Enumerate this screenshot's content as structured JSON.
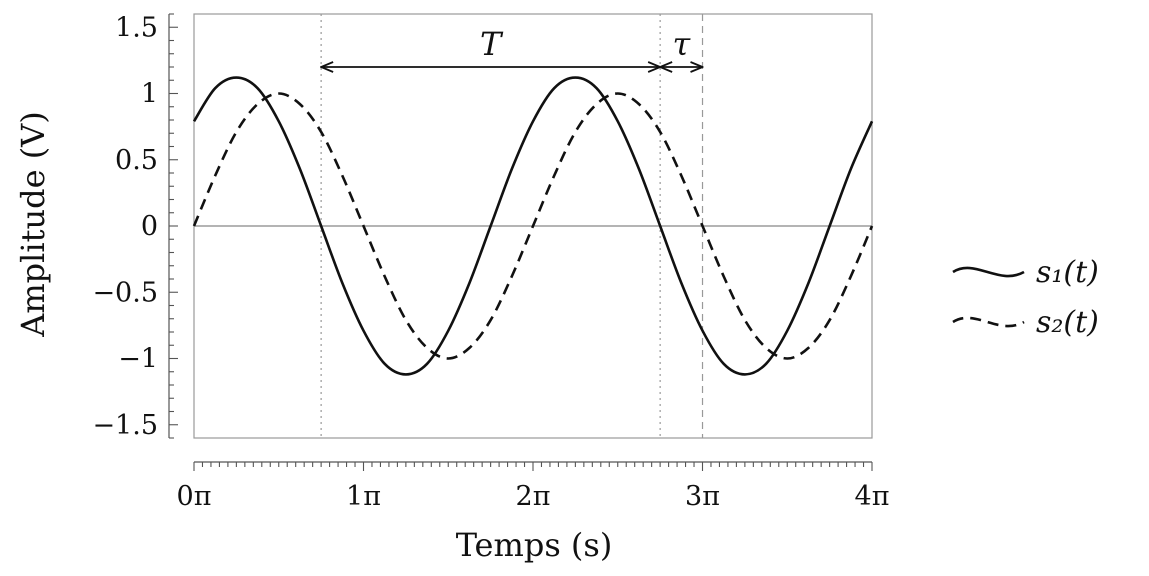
{
  "chart_data": {
    "type": "line",
    "xlabel": "Temps (s)",
    "ylabel": "Amplitude (V)",
    "xlim": [
      0,
      12.566
    ],
    "ylim": [
      -1.6,
      1.6
    ],
    "x_ticks": [
      {
        "value": 0,
        "label": "0π"
      },
      {
        "value": 3.1416,
        "label": "1π"
      },
      {
        "value": 6.2832,
        "label": "2π"
      },
      {
        "value": 9.4248,
        "label": "3π"
      },
      {
        "value": 12.566,
        "label": "4π"
      }
    ],
    "y_ticks": [
      {
        "value": 1.5,
        "label": "1.5"
      },
      {
        "value": 1,
        "label": "1"
      },
      {
        "value": 0.5,
        "label": "0.5"
      },
      {
        "value": 0,
        "label": "0"
      },
      {
        "value": -0.5,
        "label": "−0.5"
      },
      {
        "value": -1,
        "label": "−1"
      },
      {
        "value": -1.5,
        "label": "−1.5"
      }
    ],
    "series": [
      {
        "name": "s₁(t)",
        "style": "solid",
        "color": "#111111",
        "x": [
          0,
          0.3927,
          0.7854,
          1.1781,
          1.5708,
          1.9635,
          2.3562,
          2.7489,
          3.1416,
          3.5343,
          3.927,
          4.3197,
          4.7124,
          5.1051,
          5.4978,
          5.8905,
          6.2832,
          6.6759,
          7.0686,
          7.4613,
          7.854,
          8.2467,
          8.6394,
          9.0321,
          9.4248,
          9.8175,
          10.2102,
          10.6029,
          10.9956,
          11.3883,
          11.781,
          12.1737,
          12.5664
        ],
        "y": [
          0.79,
          1.04,
          1.12,
          1.04,
          0.79,
          0.43,
          0,
          -0.43,
          -0.79,
          -1.04,
          -1.12,
          -1.04,
          -0.79,
          -0.43,
          0,
          0.43,
          0.79,
          1.04,
          1.12,
          1.04,
          0.79,
          0.43,
          0,
          -0.43,
          -0.79,
          -1.04,
          -1.12,
          -1.04,
          -0.79,
          -0.43,
          0,
          0.43,
          0.79
        ]
      },
      {
        "name": "s₂(t)",
        "style": "dashed",
        "color": "#111111",
        "x": [
          0,
          0.3927,
          0.7854,
          1.1781,
          1.5708,
          1.9635,
          2.3562,
          2.7489,
          3.1416,
          3.5343,
          3.927,
          4.3197,
          4.7124,
          5.1051,
          5.4978,
          5.8905,
          6.2832,
          6.6759,
          7.0686,
          7.4613,
          7.854,
          8.2467,
          8.6394,
          9.0321,
          9.4248,
          9.8175,
          10.2102,
          10.6029,
          10.9956,
          11.3883,
          11.781,
          12.1737,
          12.5664
        ],
        "y": [
          0,
          0.38,
          0.71,
          0.92,
          1,
          0.92,
          0.71,
          0.38,
          0,
          -0.38,
          -0.71,
          -0.92,
          -1,
          -0.92,
          -0.71,
          -0.38,
          0,
          0.38,
          0.71,
          0.92,
          1,
          0.92,
          0.71,
          0.38,
          0,
          -0.38,
          -0.71,
          -0.92,
          -1,
          -0.92,
          -0.71,
          -0.38,
          0
        ]
      }
    ],
    "zero_line": 0,
    "vertical_guides": [
      {
        "x": 2.3562,
        "style": "dotted"
      },
      {
        "x": 8.6394,
        "style": "dotted"
      },
      {
        "x": 9.4248,
        "style": "dashed"
      }
    ],
    "annotations": [
      {
        "label": "T",
        "from": 2.3562,
        "to": 8.6394,
        "y": 1.2
      },
      {
        "label": "τ",
        "from": 8.6394,
        "to": 9.4248,
        "y": 1.2
      }
    ],
    "legend": {
      "position": "right",
      "grid": false
    }
  }
}
